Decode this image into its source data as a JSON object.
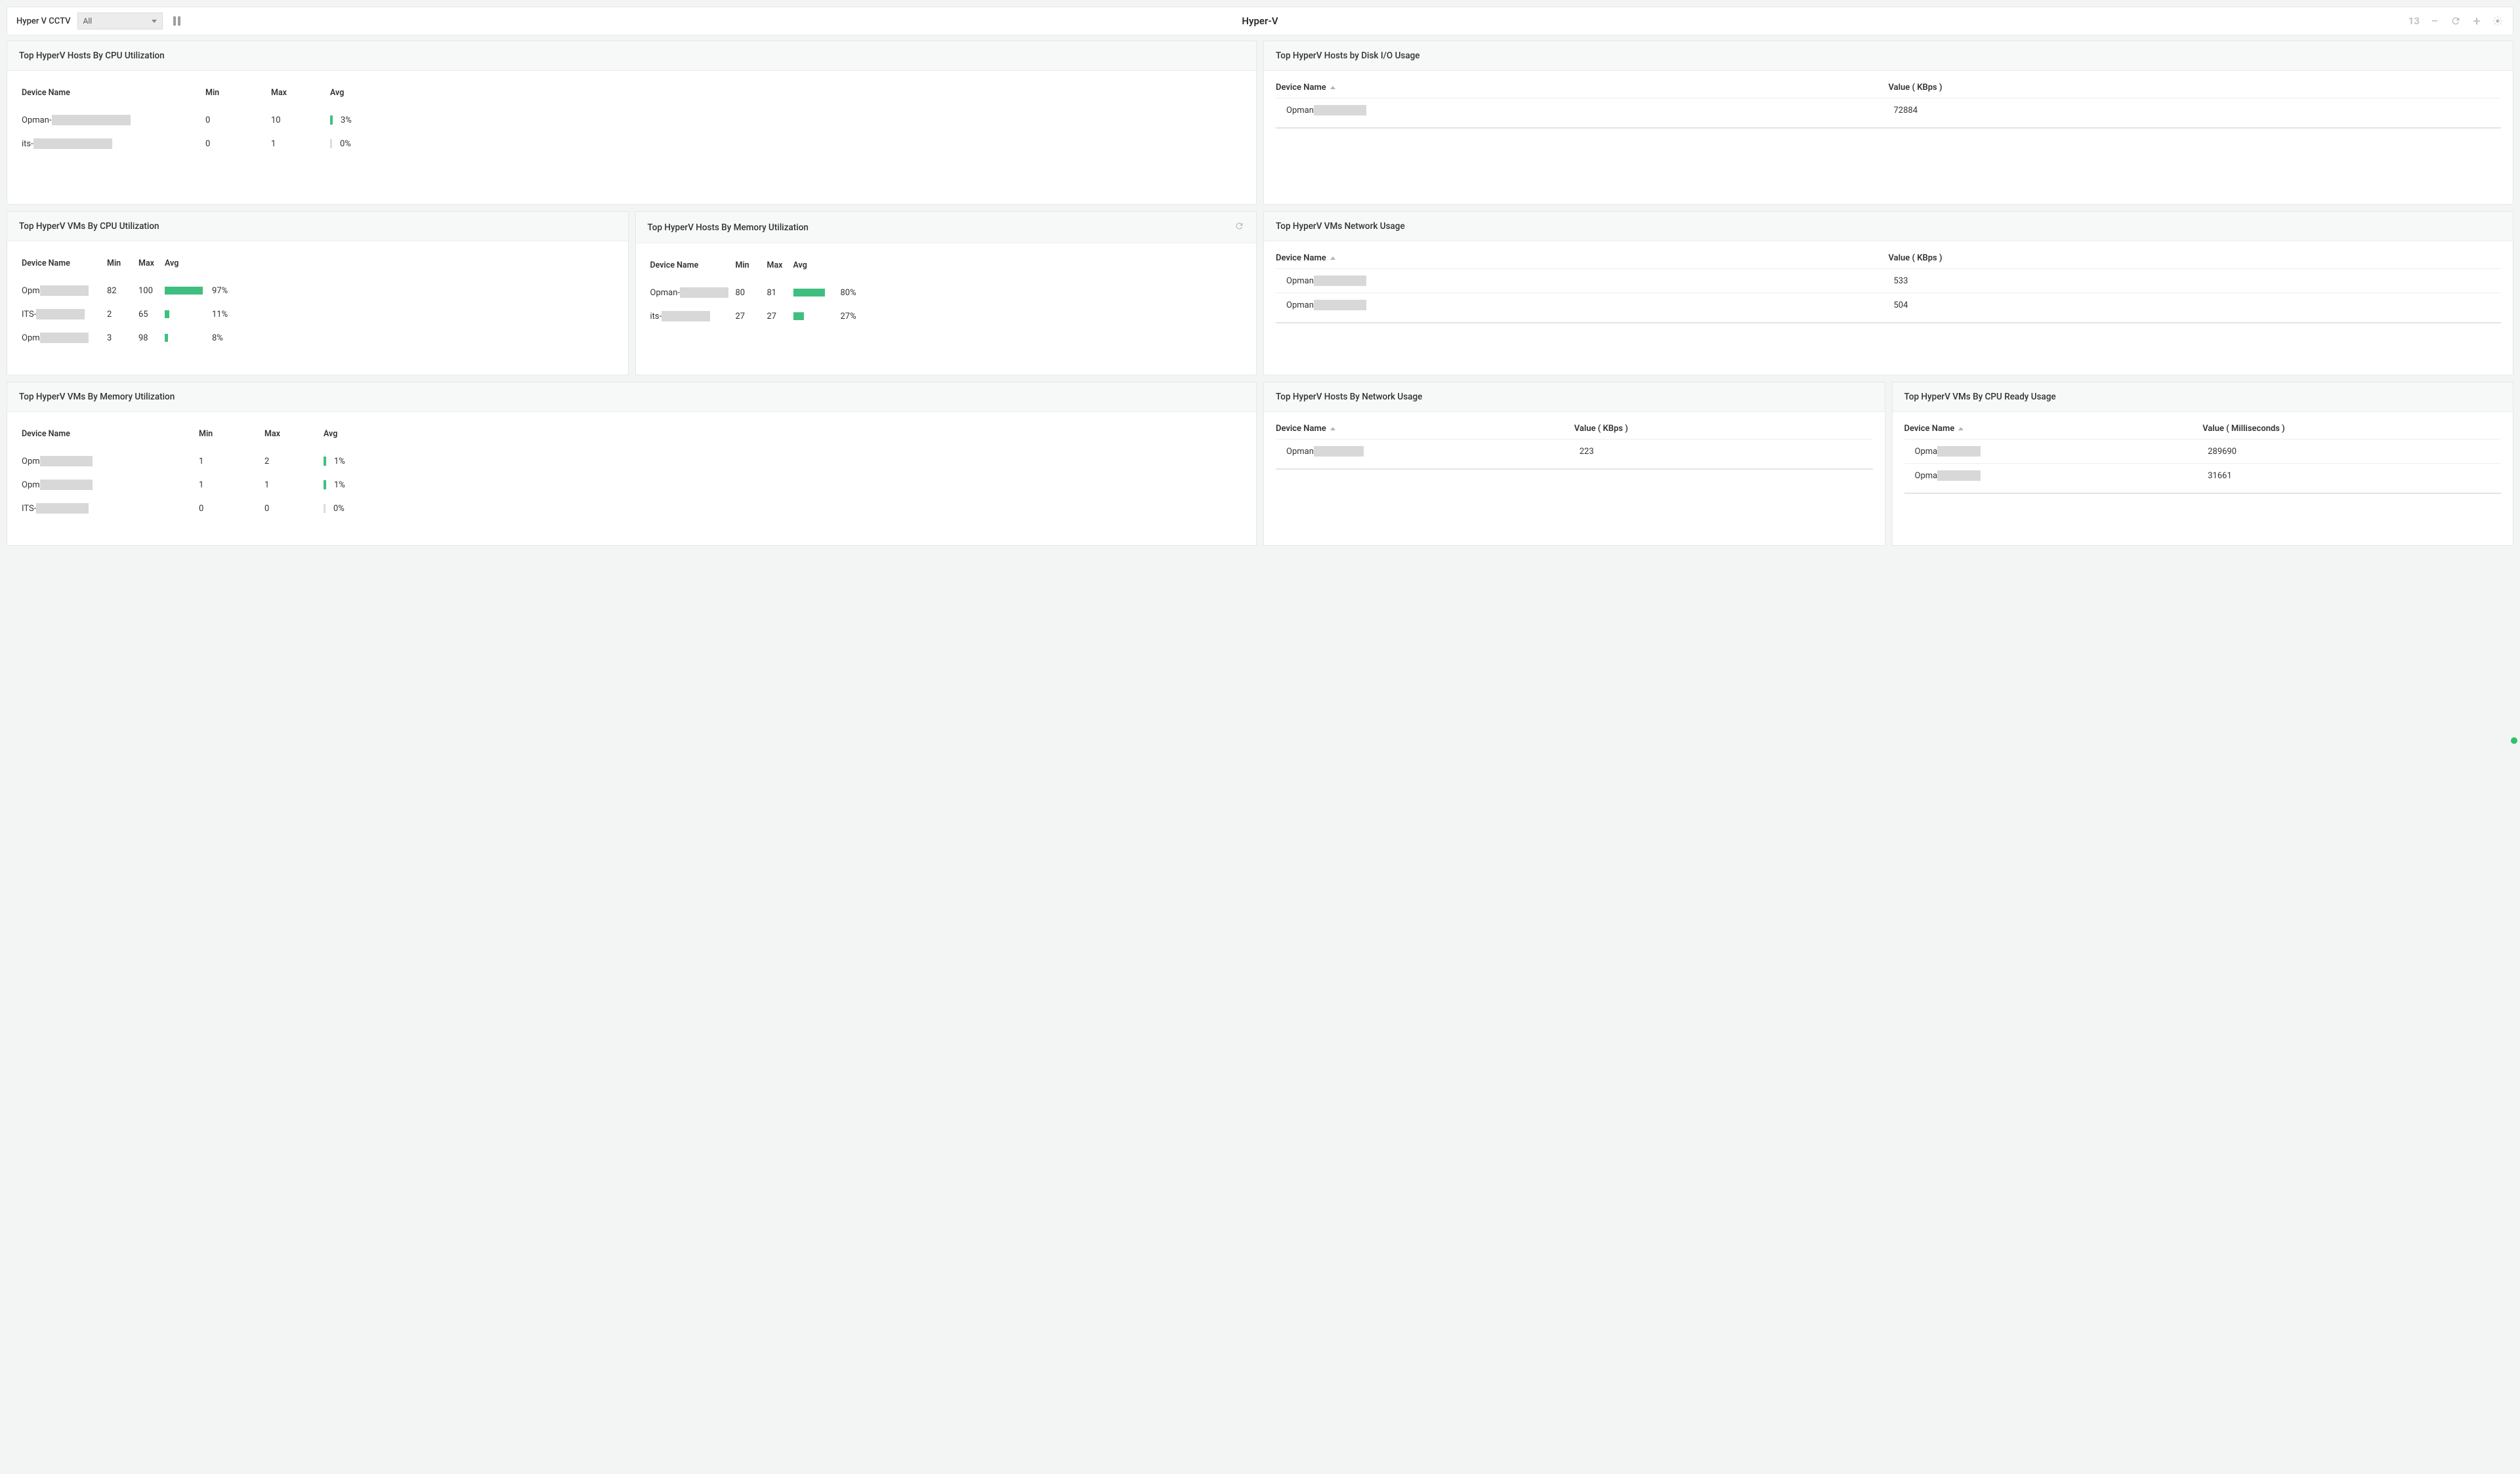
{
  "colors": {
    "page_bg": "#f3f4f4",
    "card_bg": "#ffffff",
    "card_border": "#e6e8e8",
    "header_bg": "#f7f8f8",
    "redact": "#d8d8d8",
    "bar_fill": "#3fbf7f",
    "muted_icon": "#b7bcbe",
    "status_dot": "#2fc06a"
  },
  "toolbar": {
    "label": "Hyper V CCTV",
    "select_value": "All",
    "title": "Hyper-V",
    "count": "13"
  },
  "headers": {
    "device_name": "Device Name",
    "min": "Min",
    "max": "Max",
    "avg": "Avg",
    "value_kbps": "Value ( KBps )",
    "value_ms": "Value ( Milliseconds )"
  },
  "widgets": {
    "hosts_cpu": {
      "title": "Top HyperV Hosts By CPU Utilization",
      "cols": {
        "dev": 280,
        "min": 100,
        "max": 90,
        "avg_bar": 60,
        "avg_pct": 40
      },
      "redact_w": 120,
      "rows": [
        {
          "prefix": "Opman-",
          "min": "0",
          "max": "10",
          "bar_type": "tiny",
          "pct": "3%"
        },
        {
          "prefix": "its-",
          "min": "0",
          "max": "1",
          "bar_type": "empty",
          "pct": "0%"
        }
      ]
    },
    "hosts_disk": {
      "title": "Top HyperV Hosts by Disk I/O Usage",
      "value_header": "Value ( KBps )",
      "redact_w": 80,
      "rows": [
        {
          "prefix": "Opman",
          "value": "72884"
        }
      ]
    },
    "vms_cpu": {
      "title": "Top HyperV VMs By CPU Utilization",
      "cols": {
        "dev": 130,
        "min": 48,
        "max": 40,
        "avg_bar": 60,
        "avg_pct": 36
      },
      "redact_w": 74,
      "rows": [
        {
          "prefix": "Opm",
          "min": "82",
          "max": "100",
          "bar_pct": 97,
          "pct": "97%"
        },
        {
          "prefix": "ITS-",
          "min": "2",
          "max": "65",
          "bar_pct": 11,
          "pct": "11%"
        },
        {
          "prefix": "Opm",
          "min": "3",
          "max": "98",
          "bar_pct": 8,
          "pct": "8%"
        }
      ]
    },
    "hosts_mem": {
      "title": "Top HyperV Hosts By Memory Utilization",
      "show_spinner": true,
      "cols": {
        "dev": 130,
        "min": 48,
        "max": 40,
        "avg_bar": 55,
        "avg_pct": 36
      },
      "redact_w": 74,
      "rows": [
        {
          "prefix": "Opman-",
          "min": "80",
          "max": "81",
          "bar_pct": 80,
          "pct": "80%"
        },
        {
          "prefix": "its-",
          "min": "27",
          "max": "27",
          "bar_pct": 27,
          "pct": "27%"
        }
      ]
    },
    "vms_net": {
      "title": "Top HyperV VMs Network Usage",
      "value_header": "Value ( KBps )",
      "redact_w": 80,
      "rows": [
        {
          "prefix": "Opman",
          "value": "533"
        },
        {
          "prefix": "Opman",
          "value": "504"
        }
      ]
    },
    "vms_mem": {
      "title": "Top HyperV VMs By Memory Utilization",
      "cols": {
        "dev": 270,
        "min": 100,
        "max": 90,
        "avg_bar": 60,
        "avg_pct": 40
      },
      "redact_w": 80,
      "rows": [
        {
          "prefix": "Opm",
          "min": "1",
          "max": "2",
          "bar_type": "tiny",
          "pct": "1%"
        },
        {
          "prefix": "Opm",
          "min": "1",
          "max": "1",
          "bar_type": "tiny",
          "pct": "1%"
        },
        {
          "prefix": "ITS-",
          "min": "0",
          "max": "0",
          "bar_type": "empty",
          "pct": "0%"
        }
      ]
    },
    "hosts_net": {
      "title": "Top HyperV Hosts By Network Usage",
      "value_header": "Value ( KBps )",
      "redact_w": 76,
      "rows": [
        {
          "prefix": "Opman",
          "value": "223"
        }
      ]
    },
    "vms_cpuready": {
      "title": "Top HyperV VMs By CPU Ready Usage",
      "value_header": "Value ( Milliseconds )",
      "redact_w": 66,
      "rows": [
        {
          "prefix": "Opma",
          "value": "289690"
        },
        {
          "prefix": "Opma",
          "value": "31661"
        }
      ]
    }
  }
}
